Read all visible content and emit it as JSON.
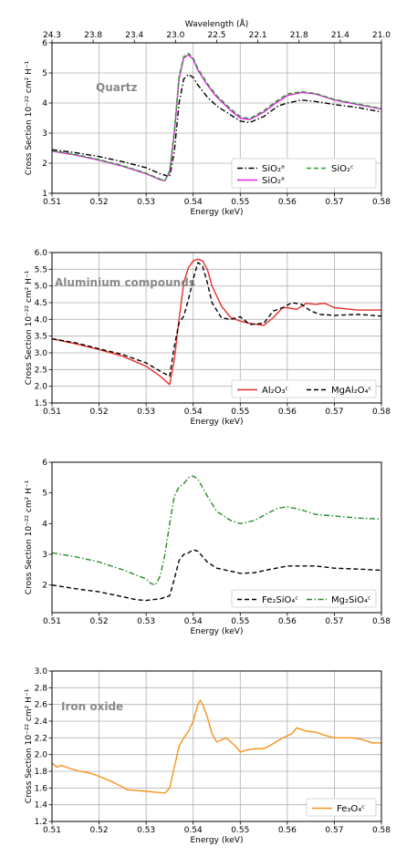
{
  "chart_data": [
    {
      "type": "line",
      "annotation": "Quartz",
      "xlabel": "Energy (keV)",
      "ylabel": "Cross Section 10⁻²² cm² H⁻¹",
      "xlim": [
        0.51,
        0.58
      ],
      "ylim": [
        1,
        6
      ],
      "xticks": [
        0.51,
        0.52,
        0.53,
        0.54,
        0.55,
        0.56,
        0.57,
        0.58
      ],
      "yticks": [
        1,
        2,
        3,
        4,
        5,
        6
      ],
      "grid": true,
      "top_axis": {
        "label": "Wavelength (Å)",
        "ticks": [
          "24.3",
          "23.8",
          "23.4",
          "23.0",
          "22.5",
          "22.1",
          "21.8",
          "21.4",
          "21.0"
        ]
      },
      "legend": {
        "placement": "lower-right",
        "columns": 2
      },
      "series": [
        {
          "name": "SiO₂ᵃ",
          "color": "#000000",
          "dash": "dashdot",
          "x": [
            0.51,
            0.515,
            0.52,
            0.525,
            0.53,
            0.533,
            0.535,
            0.536,
            0.537,
            0.538,
            0.539,
            0.54,
            0.541,
            0.543,
            0.545,
            0.548,
            0.55,
            0.552,
            0.555,
            0.558,
            0.56,
            0.563,
            0.566,
            0.57,
            0.575,
            0.58
          ],
          "y": [
            2.45,
            2.35,
            2.22,
            2.05,
            1.85,
            1.65,
            1.55,
            2.4,
            4.0,
            4.8,
            4.95,
            4.85,
            4.6,
            4.2,
            3.9,
            3.6,
            3.4,
            3.35,
            3.55,
            3.9,
            4.0,
            4.1,
            4.05,
            3.95,
            3.85,
            3.7
          ]
        },
        {
          "name": "SiO₂ᵃ",
          "color": "#e020e0",
          "dash": "solid",
          "x": [
            0.51,
            0.515,
            0.52,
            0.525,
            0.53,
            0.533,
            0.534,
            0.535,
            0.536,
            0.537,
            0.538,
            0.539,
            0.54,
            0.541,
            0.543,
            0.545,
            0.548,
            0.55,
            0.552,
            0.555,
            0.558,
            0.56,
            0.563,
            0.566,
            0.57,
            0.575,
            0.58
          ],
          "y": [
            2.4,
            2.27,
            2.1,
            1.9,
            1.65,
            1.45,
            1.42,
            1.7,
            3.0,
            4.8,
            5.5,
            5.6,
            5.45,
            5.1,
            4.6,
            4.2,
            3.75,
            3.5,
            3.45,
            3.7,
            4.05,
            4.25,
            4.35,
            4.3,
            4.1,
            3.95,
            3.8
          ]
        },
        {
          "name": "SiO₂ᶜ",
          "color": "#2ca02c",
          "dash": "dashed",
          "x": [
            0.51,
            0.515,
            0.52,
            0.525,
            0.53,
            0.533,
            0.534,
            0.535,
            0.536,
            0.537,
            0.538,
            0.539,
            0.54,
            0.541,
            0.543,
            0.545,
            0.548,
            0.55,
            0.552,
            0.555,
            0.558,
            0.56,
            0.563,
            0.566,
            0.57,
            0.575,
            0.58
          ],
          "y": [
            2.42,
            2.29,
            2.12,
            1.92,
            1.67,
            1.47,
            1.42,
            1.75,
            3.1,
            4.9,
            5.55,
            5.65,
            5.5,
            5.15,
            4.65,
            4.25,
            3.8,
            3.55,
            3.48,
            3.75,
            4.1,
            4.3,
            4.38,
            4.32,
            4.12,
            3.97,
            3.82
          ]
        }
      ]
    },
    {
      "type": "line",
      "annotation": "Aluminium compounds",
      "xlabel": "Energy (keV)",
      "ylabel": "Cross Section 10⁻²² cm² H⁻¹",
      "xlim": [
        0.51,
        0.58
      ],
      "ylim": [
        1.5,
        6.0
      ],
      "xticks": [
        0.51,
        0.52,
        0.53,
        0.54,
        0.55,
        0.56,
        0.57,
        0.58
      ],
      "yticks": [
        1.5,
        2.0,
        2.5,
        3.0,
        3.5,
        4.0,
        4.5,
        5.0,
        5.5,
        6.0
      ],
      "grid": true,
      "legend": {
        "placement": "lower-right",
        "columns": 2
      },
      "series": [
        {
          "name": "Al₂O₃ᶜ",
          "color": "#e8302a",
          "dash": "solid",
          "x": [
            0.51,
            0.515,
            0.52,
            0.525,
            0.53,
            0.533,
            0.535,
            0.536,
            0.537,
            0.538,
            0.539,
            0.54,
            0.541,
            0.542,
            0.543,
            0.544,
            0.546,
            0.548,
            0.55,
            0.552,
            0.555,
            0.557,
            0.559,
            0.56,
            0.562,
            0.564,
            0.566,
            0.568,
            0.57,
            0.575,
            0.58
          ],
          "y": [
            3.42,
            3.27,
            3.1,
            2.9,
            2.6,
            2.3,
            2.05,
            2.8,
            4.0,
            5.1,
            5.55,
            5.75,
            5.8,
            5.75,
            5.5,
            5.0,
            4.4,
            4.05,
            3.95,
            3.88,
            3.82,
            4.05,
            4.35,
            4.35,
            4.3,
            4.48,
            4.45,
            4.48,
            4.35,
            4.28,
            4.28
          ]
        },
        {
          "name": "MgAl₂O₄ᶜ",
          "color": "#000000",
          "dash": "dashed",
          "x": [
            0.51,
            0.515,
            0.52,
            0.525,
            0.53,
            0.533,
            0.535,
            0.536,
            0.537,
            0.538,
            0.539,
            0.54,
            0.541,
            0.542,
            0.543,
            0.544,
            0.546,
            0.548,
            0.55,
            0.552,
            0.555,
            0.557,
            0.559,
            0.561,
            0.563,
            0.565,
            0.567,
            0.57,
            0.575,
            0.58
          ],
          "y": [
            3.42,
            3.3,
            3.12,
            2.95,
            2.7,
            2.45,
            2.3,
            3.2,
            3.9,
            4.1,
            4.6,
            5.2,
            5.7,
            5.6,
            5.1,
            4.5,
            4.05,
            4.0,
            4.08,
            3.85,
            3.88,
            4.25,
            4.35,
            4.5,
            4.45,
            4.25,
            4.15,
            4.12,
            4.15,
            4.1
          ]
        }
      ]
    },
    {
      "type": "line",
      "annotation": "",
      "xlabel": "Energy (keV)",
      "ylabel": "Cross Section 10⁻²² cm² H⁻¹",
      "xlim": [
        0.51,
        0.58
      ],
      "ylim": [
        1.1,
        6
      ],
      "xticks": [
        0.51,
        0.52,
        0.53,
        0.54,
        0.55,
        0.56,
        0.57,
        0.58
      ],
      "yticks": [
        2,
        3,
        4,
        5,
        6
      ],
      "grid": false,
      "legend": {
        "placement": "lower-right",
        "columns": 2
      },
      "series": [
        {
          "name": "Fe₂SiO₄ᶜ",
          "color": "#000000",
          "dash": "dashed",
          "x": [
            0.51,
            0.515,
            0.52,
            0.525,
            0.528,
            0.53,
            0.533,
            0.535,
            0.536,
            0.537,
            0.538,
            0.539,
            0.54,
            0.541,
            0.543,
            0.545,
            0.548,
            0.55,
            0.553,
            0.556,
            0.56,
            0.563,
            0.566,
            0.57,
            0.575,
            0.58
          ],
          "y": [
            2.0,
            1.88,
            1.78,
            1.62,
            1.52,
            1.5,
            1.55,
            1.65,
            2.2,
            2.8,
            3.0,
            3.05,
            3.15,
            3.1,
            2.75,
            2.55,
            2.45,
            2.38,
            2.4,
            2.5,
            2.62,
            2.62,
            2.62,
            2.55,
            2.52,
            2.48
          ]
        },
        {
          "name": "Mg₂SiO₄ᶜ",
          "color": "#2a8a2a",
          "dash": "dashdot",
          "x": [
            0.51,
            0.515,
            0.52,
            0.525,
            0.53,
            0.531,
            0.532,
            0.533,
            0.534,
            0.535,
            0.536,
            0.537,
            0.538,
            0.539,
            0.54,
            0.541,
            0.543,
            0.545,
            0.548,
            0.55,
            0.553,
            0.556,
            0.558,
            0.56,
            0.563,
            0.566,
            0.57,
            0.575,
            0.58
          ],
          "y": [
            3.05,
            2.92,
            2.75,
            2.5,
            2.2,
            2.05,
            2.0,
            2.3,
            3.0,
            4.0,
            4.9,
            5.2,
            5.3,
            5.5,
            5.55,
            5.45,
            4.9,
            4.4,
            4.1,
            4.0,
            4.1,
            4.35,
            4.5,
            4.55,
            4.45,
            4.3,
            4.25,
            4.18,
            4.15
          ]
        }
      ]
    },
    {
      "type": "line",
      "annotation": "Iron oxide",
      "xlabel": "Energy (keV)",
      "ylabel": "Cross Section 10⁻²² cm² H⁻¹",
      "xlim": [
        0.51,
        0.58
      ],
      "ylim": [
        1.2,
        3.0
      ],
      "xticks": [
        0.51,
        0.52,
        0.53,
        0.54,
        0.55,
        0.56,
        0.57,
        0.58
      ],
      "yticks": [
        1.2,
        1.4,
        1.6,
        1.8,
        2.0,
        2.2,
        2.4,
        2.6,
        2.8,
        3.0
      ],
      "grid": true,
      "legend": {
        "placement": "lower-right",
        "columns": 1
      },
      "series": [
        {
          "name": "Fe₃O₄ᶜ",
          "color": "#f5941c",
          "dash": "solid",
          "x": [
            0.51,
            0.511,
            0.512,
            0.514,
            0.516,
            0.518,
            0.52,
            0.523,
            0.526,
            0.528,
            0.53,
            0.532,
            0.534,
            0.535,
            0.536,
            0.537,
            0.538,
            0.539,
            0.54,
            0.541,
            0.5415,
            0.542,
            0.543,
            0.544,
            0.545,
            0.547,
            0.549,
            0.55,
            0.551,
            0.553,
            0.555,
            0.557,
            0.559,
            0.561,
            0.562,
            0.564,
            0.566,
            0.568,
            0.57,
            0.572,
            0.574,
            0.576,
            0.578,
            0.58
          ],
          "y": [
            1.9,
            1.85,
            1.87,
            1.83,
            1.8,
            1.78,
            1.74,
            1.67,
            1.58,
            1.57,
            1.56,
            1.55,
            1.54,
            1.6,
            1.85,
            2.1,
            2.2,
            2.28,
            2.4,
            2.6,
            2.65,
            2.6,
            2.45,
            2.25,
            2.15,
            2.2,
            2.1,
            2.03,
            2.05,
            2.07,
            2.07,
            2.13,
            2.2,
            2.25,
            2.32,
            2.28,
            2.27,
            2.23,
            2.2,
            2.2,
            2.2,
            2.18,
            2.14,
            2.14
          ]
        }
      ]
    }
  ]
}
